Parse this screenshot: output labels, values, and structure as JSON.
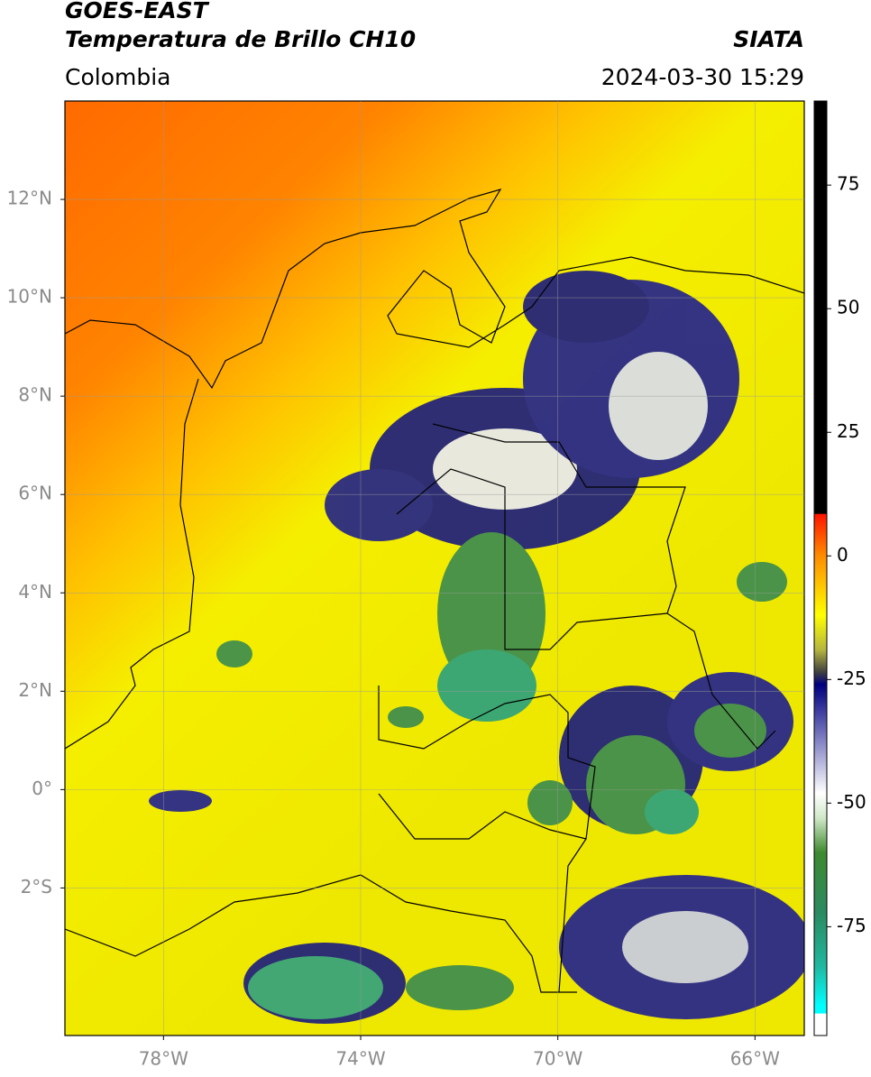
{
  "header": {
    "title_line1": "GOES-EAST",
    "title_line2": "Temperatura de Brillo CH10",
    "region": "Colombia",
    "source": "SIATA",
    "datetime": "2024-03-30 15:29"
  },
  "map": {
    "xlim": [
      -80,
      -65
    ],
    "ylim": [
      -5,
      14
    ],
    "xticks": [
      {
        "value": -78,
        "label": "78°W"
      },
      {
        "value": -74,
        "label": "74°W"
      },
      {
        "value": -70,
        "label": "70°W"
      },
      {
        "value": -66,
        "label": "66°W"
      }
    ],
    "yticks": [
      {
        "value": -2,
        "label": "2°S"
      },
      {
        "value": 0,
        "label": "0°"
      },
      {
        "value": 2,
        "label": "2°N"
      },
      {
        "value": 4,
        "label": "4°N"
      },
      {
        "value": 6,
        "label": "6°N"
      },
      {
        "value": 8,
        "label": "8°N"
      },
      {
        "value": 10,
        "label": "10°N"
      },
      {
        "value": 12,
        "label": "12°N"
      }
    ],
    "grid": true
  },
  "colorbar": {
    "lim": [
      -97,
      92
    ],
    "ticks": [
      75,
      50,
      25,
      0,
      -25,
      -50,
      -75
    ],
    "stops": [
      {
        "value": 92,
        "color": "#000000"
      },
      {
        "value": 8.6,
        "color": "#000000"
      },
      {
        "value": 8.4,
        "color": "#ff1500"
      },
      {
        "value": 0,
        "color": "#ff8c00"
      },
      {
        "value": -12,
        "color": "#ffff00"
      },
      {
        "value": -19,
        "color": "#b5b540"
      },
      {
        "value": -23.5,
        "color": "#404040"
      },
      {
        "value": -26,
        "color": "#000080"
      },
      {
        "value": -38,
        "color": "#8a8ac8"
      },
      {
        "value": -48,
        "color": "#ffffff"
      },
      {
        "value": -53,
        "color": "#d0e8c8"
      },
      {
        "value": -60,
        "color": "#3f8a30"
      },
      {
        "value": -72,
        "color": "#2a8a60"
      },
      {
        "value": -83,
        "color": "#20b8a0"
      },
      {
        "value": -91,
        "color": "#00ffff"
      },
      {
        "value": -92.5,
        "color": "#00ffff"
      },
      {
        "value": -92.6,
        "color": "#ffffff"
      },
      {
        "value": -97,
        "color": "#ffffff"
      }
    ]
  }
}
